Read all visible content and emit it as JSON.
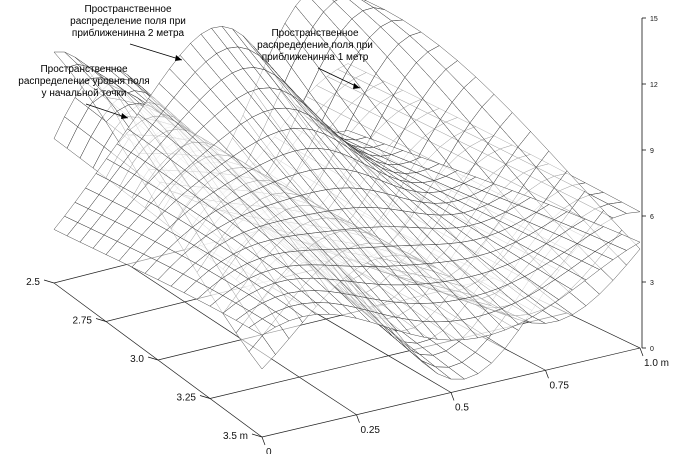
{
  "chart_data": {
    "type": "surface3d",
    "title": "",
    "annotations": [
      {
        "lines": [
          "Пространственное",
          "распределение поля при",
          "приближенинна 2 метра"
        ]
      },
      {
        "lines": [
          "Пространственное",
          "распределение поля при",
          "приближенинна 1 метр"
        ]
      },
      {
        "lines": [
          "Пространственное",
          "распределение уровня поля",
          "у начальной точки"
        ]
      }
    ],
    "x_axis": {
      "ticks": [
        "0",
        "0.25",
        "0.5",
        "0.75",
        "1.0 m"
      ],
      "range": [
        0,
        1.0
      ]
    },
    "y_axis": {
      "ticks": [
        "2.5",
        "2.75",
        "3.0",
        "3.25",
        "3.5 m"
      ],
      "range": [
        2.5,
        3.5
      ]
    },
    "z_axis": {
      "ticks": [
        "0",
        "3",
        "6",
        "9",
        "12",
        "15"
      ],
      "range": [
        0,
        15
      ]
    },
    "grid": true,
    "surfaces": [
      {
        "position": "initial point",
        "peak": 9.0
      },
      {
        "position": "2 m",
        "peak": 12.5
      },
      {
        "position": "1 m",
        "peak": 15.0
      }
    ]
  }
}
